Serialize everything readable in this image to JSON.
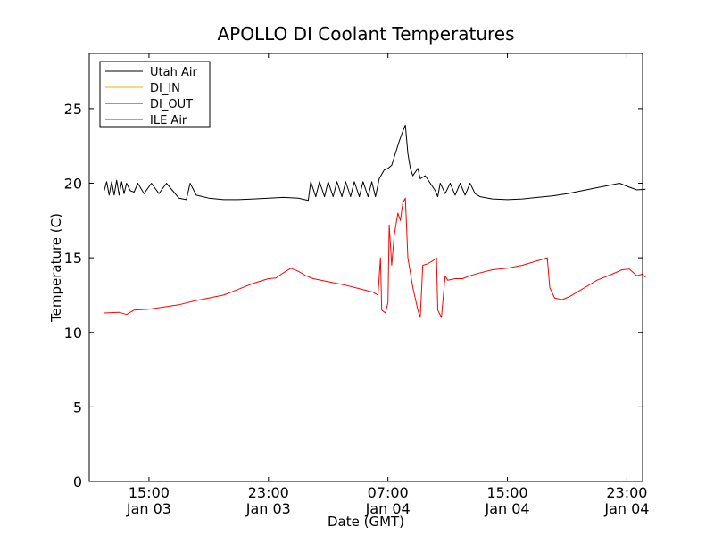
{
  "chart_data": {
    "type": "line",
    "title": "APOLLO DI Coolant Temperatures",
    "xlabel": "Date (GMT)",
    "ylabel": "Temperature (C)",
    "ylim": [
      0,
      28.7
    ],
    "xlim_hours_note": "",
    "x_ticks": [
      {
        "time": "15:00",
        "date": "Jan 03"
      },
      {
        "time": "23:00",
        "date": "Jan 03"
      },
      {
        "time": "07:00",
        "date": "Jan 04"
      },
      {
        "time": "15:00",
        "date": "Jan 04"
      },
      {
        "time": "23:00",
        "date": "Jan 04"
      }
    ],
    "y_ticks": [
      0,
      5,
      10,
      15,
      20,
      25
    ],
    "legend_position": "top-left",
    "series": [
      {
        "name": "Utah Air",
        "color": "#000000",
        "points": [
          [
            "2011-01-03 12:00",
            19.5
          ],
          [
            "2011-01-03 12:10",
            20.1
          ],
          [
            "2011-01-03 12:20",
            19.2
          ],
          [
            "2011-01-03 12:30",
            20.1
          ],
          [
            "2011-01-03 12:40",
            19.2
          ],
          [
            "2011-01-03 12:50",
            20.2
          ],
          [
            "2011-01-03 13:00",
            19.2
          ],
          [
            "2011-01-03 13:10",
            20.1
          ],
          [
            "2011-01-03 13:20",
            19.3
          ],
          [
            "2011-01-03 13:30",
            20.0
          ],
          [
            "2011-01-03 13:45",
            19.5
          ],
          [
            "2011-01-03 14:00",
            19.4
          ],
          [
            "2011-01-03 14:15",
            20.0
          ],
          [
            "2011-01-03 14:40",
            19.3
          ],
          [
            "2011-01-03 15:10",
            20.0
          ],
          [
            "2011-01-03 15:40",
            19.3
          ],
          [
            "2011-01-03 16:10",
            20.0
          ],
          [
            "2011-01-03 16:40",
            19.4
          ],
          [
            "2011-01-03 17:00",
            19.0
          ],
          [
            "2011-01-03 17:30",
            18.9
          ],
          [
            "2011-01-03 17:45",
            20.0
          ],
          [
            "2011-01-03 18:10",
            19.2
          ],
          [
            "2011-01-03 19:00",
            19.0
          ],
          [
            "2011-01-03 20:00",
            18.9
          ],
          [
            "2011-01-03 21:00",
            18.9
          ],
          [
            "2011-01-03 22:00",
            18.95
          ],
          [
            "2011-01-03 23:00",
            19.0
          ],
          [
            "2011-01-04 00:00",
            19.05
          ],
          [
            "2011-01-04 01:00",
            19.0
          ],
          [
            "2011-01-04 01:40",
            18.85
          ],
          [
            "2011-01-04 01:50",
            20.1
          ],
          [
            "2011-01-04 02:10",
            19.1
          ],
          [
            "2011-01-04 02:25",
            20.1
          ],
          [
            "2011-01-04 02:45",
            19.1
          ],
          [
            "2011-01-04 03:00",
            20.1
          ],
          [
            "2011-01-04 03:20",
            19.1
          ],
          [
            "2011-01-04 03:35",
            20.1
          ],
          [
            "2011-01-04 03:55",
            19.1
          ],
          [
            "2011-01-04 04:10",
            20.1
          ],
          [
            "2011-01-04 04:30",
            19.1
          ],
          [
            "2011-01-04 04:45",
            20.1
          ],
          [
            "2011-01-04 05:05",
            19.1
          ],
          [
            "2011-01-04 05:20",
            20.1
          ],
          [
            "2011-01-04 05:40",
            19.1
          ],
          [
            "2011-01-04 05:55",
            20.1
          ],
          [
            "2011-01-04 06:10",
            19.1
          ],
          [
            "2011-01-04 06:25",
            20.3
          ],
          [
            "2011-01-04 06:45",
            20.9
          ],
          [
            "2011-01-04 07:00",
            21.0
          ],
          [
            "2011-01-04 07:15",
            21.2
          ],
          [
            "2011-01-04 07:30",
            22.0
          ],
          [
            "2011-01-04 07:45",
            22.8
          ],
          [
            "2011-01-04 08:00",
            23.5
          ],
          [
            "2011-01-04 08:10",
            23.9
          ],
          [
            "2011-01-04 08:20",
            22.0
          ],
          [
            "2011-01-04 08:30",
            21.0
          ],
          [
            "2011-01-04 08:40",
            20.5
          ],
          [
            "2011-01-04 09:00",
            21.0
          ],
          [
            "2011-01-04 09:10",
            20.3
          ],
          [
            "2011-01-04 09:30",
            20.5
          ],
          [
            "2011-01-04 09:50",
            20.0
          ],
          [
            "2011-01-04 10:10",
            19.5
          ],
          [
            "2011-01-04 10:20",
            19.1
          ],
          [
            "2011-01-04 10:30",
            20.0
          ],
          [
            "2011-01-04 10:50",
            19.3
          ],
          [
            "2011-01-04 11:10",
            20.0
          ],
          [
            "2011-01-04 11:30",
            19.2
          ],
          [
            "2011-01-04 11:50",
            20.0
          ],
          [
            "2011-01-04 12:10",
            19.2
          ],
          [
            "2011-01-04 12:30",
            20.0
          ],
          [
            "2011-01-04 12:50",
            19.3
          ],
          [
            "2011-01-04 13:10",
            19.1
          ],
          [
            "2011-01-04 14:00",
            18.95
          ],
          [
            "2011-01-04 15:00",
            18.9
          ],
          [
            "2011-01-04 16:00",
            18.95
          ],
          [
            "2011-01-04 17:00",
            19.05
          ],
          [
            "2011-01-04 18:00",
            19.15
          ],
          [
            "2011-01-04 19:00",
            19.3
          ],
          [
            "2011-01-04 20:00",
            19.5
          ],
          [
            "2011-01-04 21:00",
            19.7
          ],
          [
            "2011-01-04 22:00",
            19.9
          ],
          [
            "2011-01-04 22:30",
            20.0
          ],
          [
            "2011-01-04 23:00",
            19.8
          ],
          [
            "2011-01-04 23:40",
            19.55
          ],
          [
            "2011-01-05 00:15",
            19.6
          ]
        ]
      },
      {
        "name": "DI_IN",
        "color": "#e8b400",
        "points": []
      },
      {
        "name": "DI_OUT",
        "color": "#800080",
        "points": []
      },
      {
        "name": "ILE Air",
        "color": "#ff0000",
        "points": [
          [
            "2011-01-03 12:00",
            11.3
          ],
          [
            "2011-01-03 13:00",
            11.35
          ],
          [
            "2011-01-03 13:30",
            11.2
          ],
          [
            "2011-01-03 14:00",
            11.5
          ],
          [
            "2011-01-03 15:00",
            11.55
          ],
          [
            "2011-01-03 16:00",
            11.7
          ],
          [
            "2011-01-03 17:00",
            11.85
          ],
          [
            "2011-01-03 18:00",
            12.1
          ],
          [
            "2011-01-03 19:00",
            12.3
          ],
          [
            "2011-01-03 20:00",
            12.5
          ],
          [
            "2011-01-03 21:00",
            12.9
          ],
          [
            "2011-01-03 22:00",
            13.3
          ],
          [
            "2011-01-03 23:00",
            13.6
          ],
          [
            "2011-01-03 23:30",
            13.65
          ],
          [
            "2011-01-04 00:00",
            14.0
          ],
          [
            "2011-01-04 00:30",
            14.3
          ],
          [
            "2011-01-04 01:00",
            14.1
          ],
          [
            "2011-01-04 01:30",
            13.8
          ],
          [
            "2011-01-04 02:00",
            13.6
          ],
          [
            "2011-01-04 03:00",
            13.4
          ],
          [
            "2011-01-04 04:00",
            13.2
          ],
          [
            "2011-01-04 05:00",
            12.95
          ],
          [
            "2011-01-04 06:00",
            12.7
          ],
          [
            "2011-01-04 06:20",
            12.5
          ],
          [
            "2011-01-04 06:30",
            15.0
          ],
          [
            "2011-01-04 06:35",
            11.5
          ],
          [
            "2011-01-04 06:50",
            11.3
          ],
          [
            "2011-01-04 07:00",
            12.0
          ],
          [
            "2011-01-04 07:05",
            17.2
          ],
          [
            "2011-01-04 07:15",
            14.5
          ],
          [
            "2011-01-04 07:25",
            16.5
          ],
          [
            "2011-01-04 07:40",
            18.0
          ],
          [
            "2011-01-04 07:50",
            17.5
          ],
          [
            "2011-01-04 08:00",
            18.7
          ],
          [
            "2011-01-04 08:10",
            19.0
          ],
          [
            "2011-01-04 08:20",
            15.0
          ],
          [
            "2011-01-04 08:40",
            13.0
          ],
          [
            "2011-01-04 09:00",
            11.5
          ],
          [
            "2011-01-04 09:10",
            11.0
          ],
          [
            "2011-01-04 09:20",
            14.5
          ],
          [
            "2011-01-04 09:40",
            14.6
          ],
          [
            "2011-01-04 10:00",
            14.8
          ],
          [
            "2011-01-04 10:15",
            15.0
          ],
          [
            "2011-01-04 10:20",
            11.5
          ],
          [
            "2011-01-04 10:35",
            11.0
          ],
          [
            "2011-01-04 10:50",
            13.8
          ],
          [
            "2011-01-04 11:00",
            13.5
          ],
          [
            "2011-01-04 11:30",
            13.6
          ],
          [
            "2011-01-04 12:00",
            13.6
          ],
          [
            "2011-01-04 12:30",
            13.8
          ],
          [
            "2011-01-04 13:00",
            13.95
          ],
          [
            "2011-01-04 14:00",
            14.2
          ],
          [
            "2011-01-04 15:00",
            14.3
          ],
          [
            "2011-01-04 16:00",
            14.5
          ],
          [
            "2011-01-04 17:00",
            14.8
          ],
          [
            "2011-01-04 17:40",
            15.0
          ],
          [
            "2011-01-04 17:50",
            13.0
          ],
          [
            "2011-01-04 18:10",
            12.3
          ],
          [
            "2011-01-04 18:40",
            12.2
          ],
          [
            "2011-01-04 19:10",
            12.4
          ],
          [
            "2011-01-04 20:00",
            12.9
          ],
          [
            "2011-01-04 21:00",
            13.5
          ],
          [
            "2011-01-04 22:00",
            13.9
          ],
          [
            "2011-01-04 22:40",
            14.2
          ],
          [
            "2011-01-04 23:10",
            14.25
          ],
          [
            "2011-01-04 23:40",
            13.8
          ],
          [
            "2011-01-05 00:00",
            13.9
          ],
          [
            "2011-01-05 00:15",
            13.7
          ]
        ]
      }
    ]
  }
}
